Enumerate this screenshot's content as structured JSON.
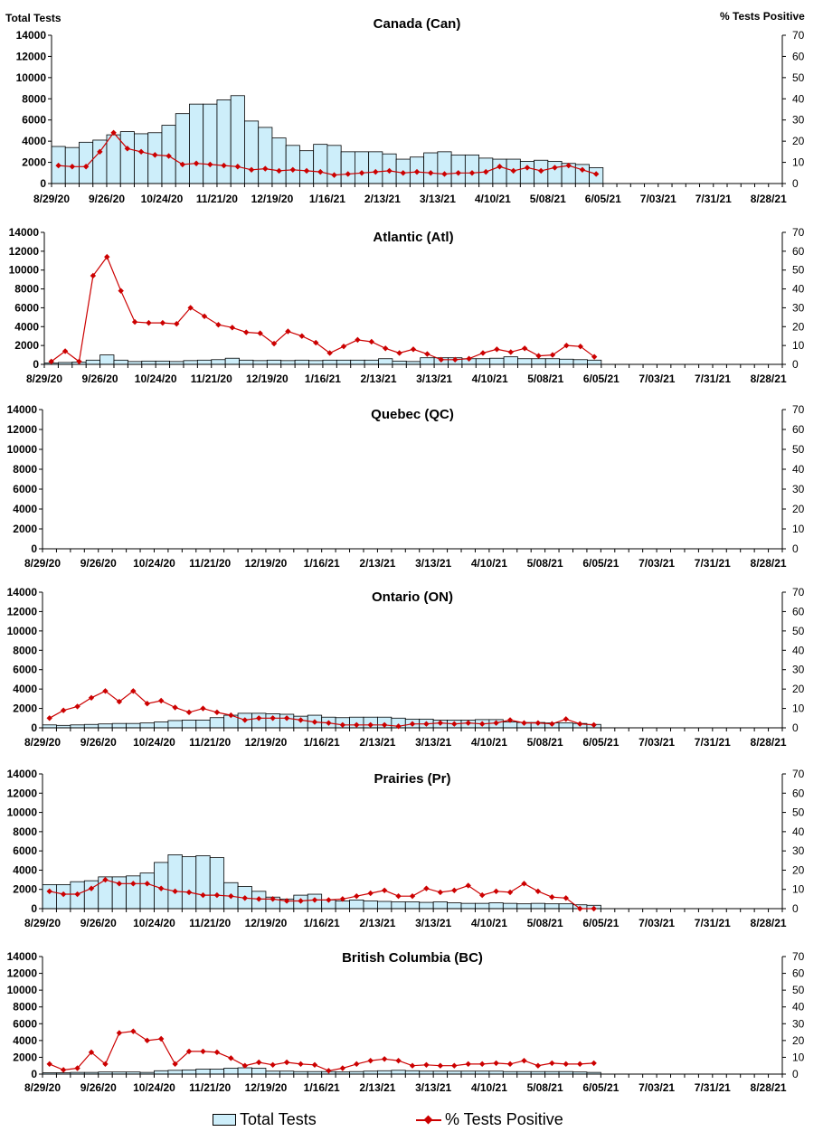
{
  "axis_titles": {
    "left": "Total Tests",
    "right": "% Tests Positive"
  },
  "legend": {
    "bars": "Total Tests",
    "line": "% Tests Positive"
  },
  "colors": {
    "bar_fill": "#cdeefa",
    "bar_stroke": "#000000",
    "line": "#cc0000"
  },
  "chart_data": [
    {
      "type": "bar",
      "title": "Canada (Can)",
      "x_tick_labels": [
        "8/29/20",
        "9/26/20",
        "10/24/20",
        "11/21/20",
        "12/19/20",
        "1/16/21",
        "2/13/21",
        "3/13/21",
        "4/10/21",
        "5/08/21",
        "6/05/21",
        "7/03/21",
        "7/31/21",
        "8/28/21"
      ],
      "y_left_ticks": [
        "0",
        "2000",
        "4000",
        "6000",
        "8000",
        "10000",
        "12000",
        "14000"
      ],
      "y_right_ticks": [
        "0",
        "10",
        "20",
        "30",
        "40",
        "50",
        "60",
        "70"
      ],
      "ylim_left": [
        0,
        14000
      ],
      "ylim_right": [
        0,
        70
      ],
      "series": [
        {
          "name": "Total Tests",
          "type": "bar",
          "axis": "left",
          "values": [
            3500,
            3400,
            3900,
            4100,
            4600,
            4900,
            4700,
            4800,
            5500,
            6600,
            7500,
            7500,
            7900,
            8300,
            5900,
            5300,
            4300,
            3600,
            3100,
            3700,
            3600,
            3000,
            3000,
            3000,
            2800,
            2300,
            2500,
            2900,
            3000,
            2700,
            2700,
            2400,
            2300,
            2300,
            2100,
            2200,
            2100,
            1900,
            1800,
            1500
          ]
        },
        {
          "name": "% Tests Positive",
          "type": "line",
          "axis": "right",
          "values": [
            8.5,
            8,
            8,
            15,
            24,
            16.5,
            15,
            13.5,
            13,
            9,
            9.5,
            9,
            8.5,
            8,
            6.5,
            7,
            6,
            6.5,
            6,
            5.5,
            4,
            4.5,
            5,
            5.5,
            6,
            5,
            5.5,
            5,
            4.5,
            5,
            5,
            5.5,
            8,
            6,
            7.5,
            6,
            7.5,
            8.5,
            6.5,
            4.5
          ]
        }
      ]
    },
    {
      "type": "bar",
      "title": "Atlantic (Atl)",
      "x_tick_labels": [
        "8/29/20",
        "9/26/20",
        "10/24/20",
        "11/21/20",
        "12/19/20",
        "1/16/21",
        "2/13/21",
        "3/13/21",
        "4/10/21",
        "5/08/21",
        "6/05/21",
        "7/03/21",
        "7/31/21",
        "8/28/21"
      ],
      "y_left_ticks": [
        "0",
        "2000",
        "4000",
        "6000",
        "8000",
        "10000",
        "12000",
        "14000"
      ],
      "y_right_ticks": [
        "0",
        "10",
        "20",
        "30",
        "40",
        "50",
        "60",
        "70"
      ],
      "ylim_left": [
        0,
        14000
      ],
      "ylim_right": [
        0,
        70
      ],
      "series": [
        {
          "name": "Total Tests",
          "type": "bar",
          "axis": "left",
          "values": [
            150,
            200,
            250,
            450,
            1000,
            450,
            300,
            350,
            350,
            300,
            400,
            450,
            500,
            650,
            450,
            400,
            450,
            400,
            450,
            400,
            450,
            450,
            450,
            450,
            600,
            350,
            300,
            700,
            700,
            700,
            600,
            600,
            650,
            800,
            600,
            600,
            600,
            550,
            500,
            450
          ]
        },
        {
          "name": "% Tests Positive",
          "type": "line",
          "axis": "right",
          "values": [
            1.5,
            7,
            1.5,
            47,
            57,
            39,
            22.5,
            22,
            22,
            21.5,
            30,
            25.5,
            21,
            19.5,
            17,
            16.5,
            11,
            17.5,
            15,
            11.5,
            6,
            9.5,
            13,
            12,
            8.5,
            6,
            8,
            5.5,
            2.5,
            2.5,
            3,
            6,
            8,
            6.5,
            8.5,
            4.5,
            5,
            10,
            9.5,
            4
          ]
        }
      ]
    },
    {
      "type": "bar",
      "title": "Quebec (QC)",
      "x_tick_labels": [
        "8/29/20",
        "9/26/20",
        "10/24/20",
        "11/21/20",
        "12/19/20",
        "1/16/21",
        "2/13/21",
        "3/13/21",
        "4/10/21",
        "5/08/21",
        "6/05/21",
        "7/03/21",
        "7/31/21",
        "8/28/21"
      ],
      "y_left_ticks": [
        "0",
        "2000",
        "4000",
        "6000",
        "8000",
        "10000",
        "12000",
        "14000"
      ],
      "y_right_ticks": [
        "0",
        "10",
        "20",
        "30",
        "40",
        "50",
        "60",
        "70"
      ],
      "ylim_left": [
        0,
        14000
      ],
      "ylim_right": [
        0,
        70
      ],
      "series": []
    },
    {
      "type": "bar",
      "title": "Ontario (ON)",
      "x_tick_labels": [
        "8/29/20",
        "9/26/20",
        "10/24/20",
        "11/21/20",
        "12/19/20",
        "1/16/21",
        "2/13/21",
        "3/13/21",
        "4/10/21",
        "5/08/21",
        "6/05/21",
        "7/03/21",
        "7/31/21",
        "8/28/21"
      ],
      "y_left_ticks": [
        "0",
        "2000",
        "4000",
        "6000",
        "8000",
        "10000",
        "12000",
        "14000"
      ],
      "y_right_ticks": [
        "0",
        "10",
        "20",
        "30",
        "40",
        "50",
        "60",
        "70"
      ],
      "ylim_left": [
        0,
        14000
      ],
      "ylim_right": [
        0,
        70
      ],
      "series": [
        {
          "name": "Total Tests",
          "type": "bar",
          "axis": "left",
          "values": [
            300,
            250,
            300,
            350,
            400,
            450,
            450,
            500,
            600,
            750,
            800,
            800,
            1050,
            1300,
            1500,
            1500,
            1450,
            1400,
            1200,
            1300,
            1100,
            1050,
            1100,
            1100,
            1100,
            1000,
            900,
            900,
            800,
            800,
            800,
            850,
            850,
            600,
            550,
            550,
            500,
            500,
            450,
            350
          ]
        },
        {
          "name": "% Tests Positive",
          "type": "line",
          "axis": "right",
          "values": [
            5,
            9,
            11,
            15.5,
            19,
            13.5,
            19,
            12.5,
            14,
            10.5,
            8,
            10,
            8,
            6.5,
            4,
            5,
            5,
            5,
            4,
            3,
            2.5,
            1.5,
            1.5,
            1.5,
            1.5,
            0.8,
            2,
            2,
            2.5,
            2,
            2.5,
            2,
            2.5,
            4,
            2.5,
            2.5,
            2,
            4.5,
            2,
            1.5
          ]
        }
      ]
    },
    {
      "type": "bar",
      "title": "Prairies (Pr)",
      "x_tick_labels": [
        "8/29/20",
        "9/26/20",
        "10/24/20",
        "11/21/20",
        "12/19/20",
        "1/16/21",
        "2/13/21",
        "3/13/21",
        "4/10/21",
        "5/08/21",
        "6/05/21",
        "7/03/21",
        "7/31/21",
        "8/28/21"
      ],
      "y_left_ticks": [
        "0",
        "2000",
        "4000",
        "6000",
        "8000",
        "10000",
        "12000",
        "14000"
      ],
      "y_right_ticks": [
        "0",
        "10",
        "20",
        "30",
        "40",
        "50",
        "60",
        "70"
      ],
      "ylim_left": [
        0,
        14000
      ],
      "ylim_right": [
        0,
        70
      ],
      "series": [
        {
          "name": "Total Tests",
          "type": "bar",
          "axis": "left",
          "values": [
            2500,
            2500,
            2800,
            2900,
            3300,
            3300,
            3400,
            3700,
            4800,
            5600,
            5400,
            5500,
            5300,
            2700,
            2300,
            1800,
            1200,
            1000,
            1400,
            1500,
            900,
            800,
            900,
            800,
            750,
            700,
            700,
            650,
            700,
            600,
            550,
            550,
            600,
            550,
            500,
            550,
            500,
            500,
            400,
            350
          ]
        },
        {
          "name": "% Tests Positive",
          "type": "line",
          "axis": "right",
          "values": [
            9,
            7.5,
            7.5,
            10.5,
            15,
            13,
            13,
            13,
            10.5,
            9,
            8.5,
            7,
            7,
            6.5,
            5.5,
            5,
            5,
            4,
            4,
            4.5,
            4.5,
            5,
            6.5,
            8,
            9.5,
            6.5,
            6.5,
            10.5,
            8.5,
            9.5,
            12,
            7,
            9,
            8.5,
            13,
            9,
            6,
            5.5,
            0,
            0
          ]
        }
      ]
    },
    {
      "type": "bar",
      "title": "British Columbia (BC)",
      "x_tick_labels": [
        "8/29/20",
        "9/26/20",
        "10/24/20",
        "11/21/20",
        "12/19/20",
        "1/16/21",
        "2/13/21",
        "3/13/21",
        "4/10/21",
        "5/08/21",
        "6/05/21",
        "7/03/21",
        "7/31/21",
        "8/28/21"
      ],
      "y_left_ticks": [
        "0",
        "2000",
        "4000",
        "6000",
        "8000",
        "10000",
        "12000",
        "14000"
      ],
      "y_right_ticks": [
        "0",
        "10",
        "20",
        "30",
        "40",
        "50",
        "60",
        "70"
      ],
      "ylim_left": [
        0,
        14000
      ],
      "ylim_right": [
        0,
        70
      ],
      "series": [
        {
          "name": "Total Tests",
          "type": "bar",
          "axis": "left",
          "values": [
            150,
            150,
            200,
            200,
            250,
            250,
            250,
            200,
            400,
            450,
            500,
            600,
            600,
            700,
            750,
            700,
            350,
            350,
            300,
            300,
            300,
            250,
            300,
            350,
            400,
            450,
            400,
            350,
            350,
            350,
            350,
            350,
            350,
            300,
            300,
            300,
            300,
            300,
            250,
            200
          ]
        },
        {
          "name": "% Tests Positive",
          "type": "line",
          "axis": "right",
          "values": [
            6,
            2.5,
            3.5,
            13,
            6,
            24.5,
            25.5,
            20,
            21,
            6,
            13.5,
            13.5,
            13,
            9.5,
            5,
            7,
            5.5,
            7,
            6,
            5.5,
            2,
            3.5,
            6,
            8,
            9,
            8,
            5,
            5.5,
            5,
            5,
            6,
            6,
            6.5,
            6,
            8,
            5,
            6.5,
            6,
            6,
            6.5
          ]
        }
      ]
    }
  ]
}
